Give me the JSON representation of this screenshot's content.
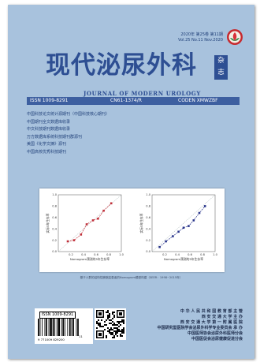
{
  "header": {
    "issue_cn": "2020年 第25卷 第11期",
    "issue_en": "Vol.25 No.11 Nov.2020"
  },
  "title": {
    "cn": "现代泌尿外科",
    "zazhi": [
      "杂",
      "志"
    ],
    "en": "JOURNAL OF MODERN UROLOGY"
  },
  "info_bar": {
    "issn": "ISSN 1009-8291",
    "cn": "CN61-1374/R",
    "coden": "CODEN XMWZBF"
  },
  "indexed_in": [
    "中国科技论文统计源期刊（中国科技核心期刊）",
    "中国期刊全文数据库收录",
    "中文科技期刊数据库收录",
    "万方数据库系统科技期刊群源刊",
    "美国《化学文摘》源刊",
    "中国高校优秀科技期刊"
  ],
  "figure": {
    "xlabel": "Nomogram预测的5年生存率",
    "ylabel": "实际5年生存率",
    "caption": "基于人群的结构性膀胱癌患者的Nomogram模型构建（SEER：1998~2015年）"
  },
  "chart_data": [
    {
      "type": "line",
      "xlabel": "Nomogram预测的5年生存率",
      "ylabel": "实际5年生存率",
      "xlim": [
        0,
        1
      ],
      "ylim": [
        0,
        1
      ],
      "x_ticks": [
        "0.2",
        "0.4",
        "0.6",
        "0.8",
        "1.0"
      ],
      "y_ticks": [
        "0.0",
        "0.2",
        "0.4",
        "0.6",
        "0.8",
        "1.0"
      ],
      "series": [
        {
          "color": "#c0303a",
          "x": [
            0.15,
            0.25,
            0.36,
            0.45,
            0.55,
            0.63,
            0.72,
            0.84
          ],
          "y": [
            0.18,
            0.2,
            0.3,
            0.48,
            0.55,
            0.58,
            0.72,
            0.85
          ]
        }
      ]
    },
    {
      "type": "line",
      "xlabel": "Nomogram预测的5年生存率",
      "ylabel": "实际5年生存率",
      "xlim": [
        0,
        1
      ],
      "ylim": [
        0,
        1
      ],
      "x_ticks": [
        "0.2",
        "0.4",
        "0.6",
        "0.8",
        "1.0"
      ],
      "y_ticks": [
        "0.0",
        "0.2",
        "0.4",
        "0.6",
        "0.8",
        "1.0"
      ],
      "series": [
        {
          "color": "#28348a",
          "x": [
            0.12,
            0.22,
            0.33,
            0.42,
            0.5,
            0.58,
            0.66,
            0.75,
            0.84
          ],
          "y": [
            0.08,
            0.18,
            0.27,
            0.35,
            0.42,
            0.45,
            0.55,
            0.68,
            0.8
          ]
        }
      ]
    }
  ],
  "barcode": {
    "issn_label": "ISSN 1009-8291",
    "number": "9 771009 829200",
    "addon": "11"
  },
  "publishers": [
    "中 华 人 民 共 和 国 教 育 部 主 管",
    "西  安  交  通  大  学  主  办",
    "西 安 交 通 大 学 第 一 附 属 医 院",
    "中国研究型医院学会泌尿外科学专业委员会 承 办",
    "中国医师协会泌尿外科医师分会",
    "中国医促会泌尿健康促进分会"
  ],
  "colors": {
    "cover_bg": "#a8c2dd",
    "title_blue": "#2e4f93",
    "info_bar_bg": "#3d5fa0",
    "series_red": "#c0303a",
    "series_navy": "#28348a"
  },
  "icons": {
    "publisher_logo": "red-green-lotus-logo-icon"
  }
}
